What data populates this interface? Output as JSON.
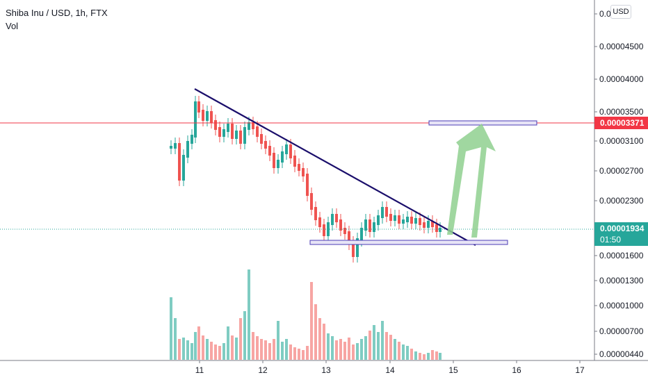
{
  "header": {
    "symbol_line": "Shiba Inu / USD, 1h, FTX",
    "volume_label": "Vol"
  },
  "currency_badge": "USD",
  "price_axis": {
    "ticks": [
      "0.0",
      "0.00004500",
      "0.00004000",
      "0.00003500",
      "0.00003100",
      "0.00002700",
      "0.00002300",
      "0.00001600",
      "0.00001300",
      "0.00001000",
      "0.00000700",
      "0.00000440"
    ]
  },
  "time_axis": {
    "ticks": [
      "11",
      "12",
      "13",
      "14",
      "15",
      "16",
      "17"
    ]
  },
  "price_tags": {
    "horizontal_level": "0.00003371",
    "last_price": "0.00001934",
    "countdown": "01:50"
  },
  "colors": {
    "up": "#26a69a",
    "down": "#ef5350",
    "vol_up": "#7fccc2",
    "vol_down": "#f7a5a3",
    "trendline": "#1a0e6b",
    "horizontal_line": "#f23645",
    "arrow": "#8fd08f"
  },
  "chart_data": {
    "type": "candlestick",
    "title": "Shiba Inu / USD, 1h, FTX",
    "x_axis_ticks": [
      "11",
      "12",
      "13",
      "14",
      "15",
      "16",
      "17"
    ],
    "y_axis_ticks": [
      4.5e-05,
      4e-05,
      3.5e-05,
      3.1e-05,
      2.7e-05,
      2.3e-05,
      1.6e-05,
      1.3e-05,
      1e-05,
      7e-06,
      4.4e-06
    ],
    "last_price": 1.934e-05,
    "horizontal_level": 3.371e-05,
    "grid": false,
    "drawings": {
      "trendline": [
        [
          10.95,
          3.88e-05
        ],
        [
          15.4,
          1.66e-05
        ]
      ],
      "resistance_box": {
        "x": [
          14.6,
          16.3
        ],
        "y": [
          3.35e-05,
          3.41e-05
        ]
      },
      "support_box": {
        "x": [
          12.7,
          15.9
        ],
        "y": [
          1.69e-05,
          1.75e-05
        ]
      },
      "target_arrow": {
        "from": [
          15.4,
          1.83e-05
        ],
        "to": [
          15.45,
          3.41e-05
        ]
      }
    }
  }
}
